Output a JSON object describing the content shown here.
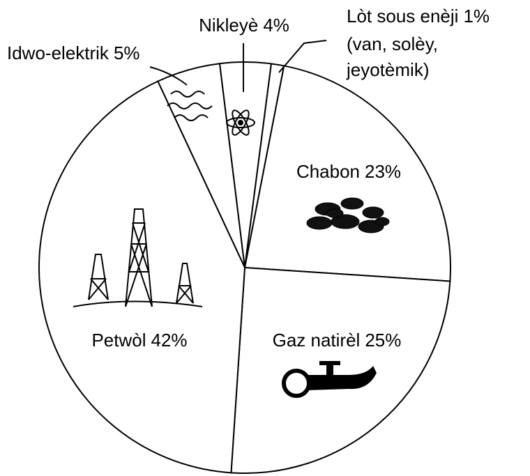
{
  "chart_data": {
    "type": "pie",
    "categories": [
      "Idwo-elektrik",
      "Nikleyè",
      "Lòt sous enèji",
      "Chabon",
      "Gaz natirèl",
      "Petwòl"
    ],
    "values": [
      5,
      4,
      1,
      23,
      25,
      42
    ],
    "value_labels": [
      "5%",
      "4%",
      "1%",
      "23%",
      "25%",
      "42%"
    ],
    "annotations": [
      {
        "text": [
          "(van, solèy,",
          "jeyotèmik)"
        ]
      }
    ],
    "colors": [
      "#ffffff",
      "#ffffff",
      "#ffffff",
      "#ffffff",
      "#ffffff",
      "#ffffff"
    ]
  }
}
